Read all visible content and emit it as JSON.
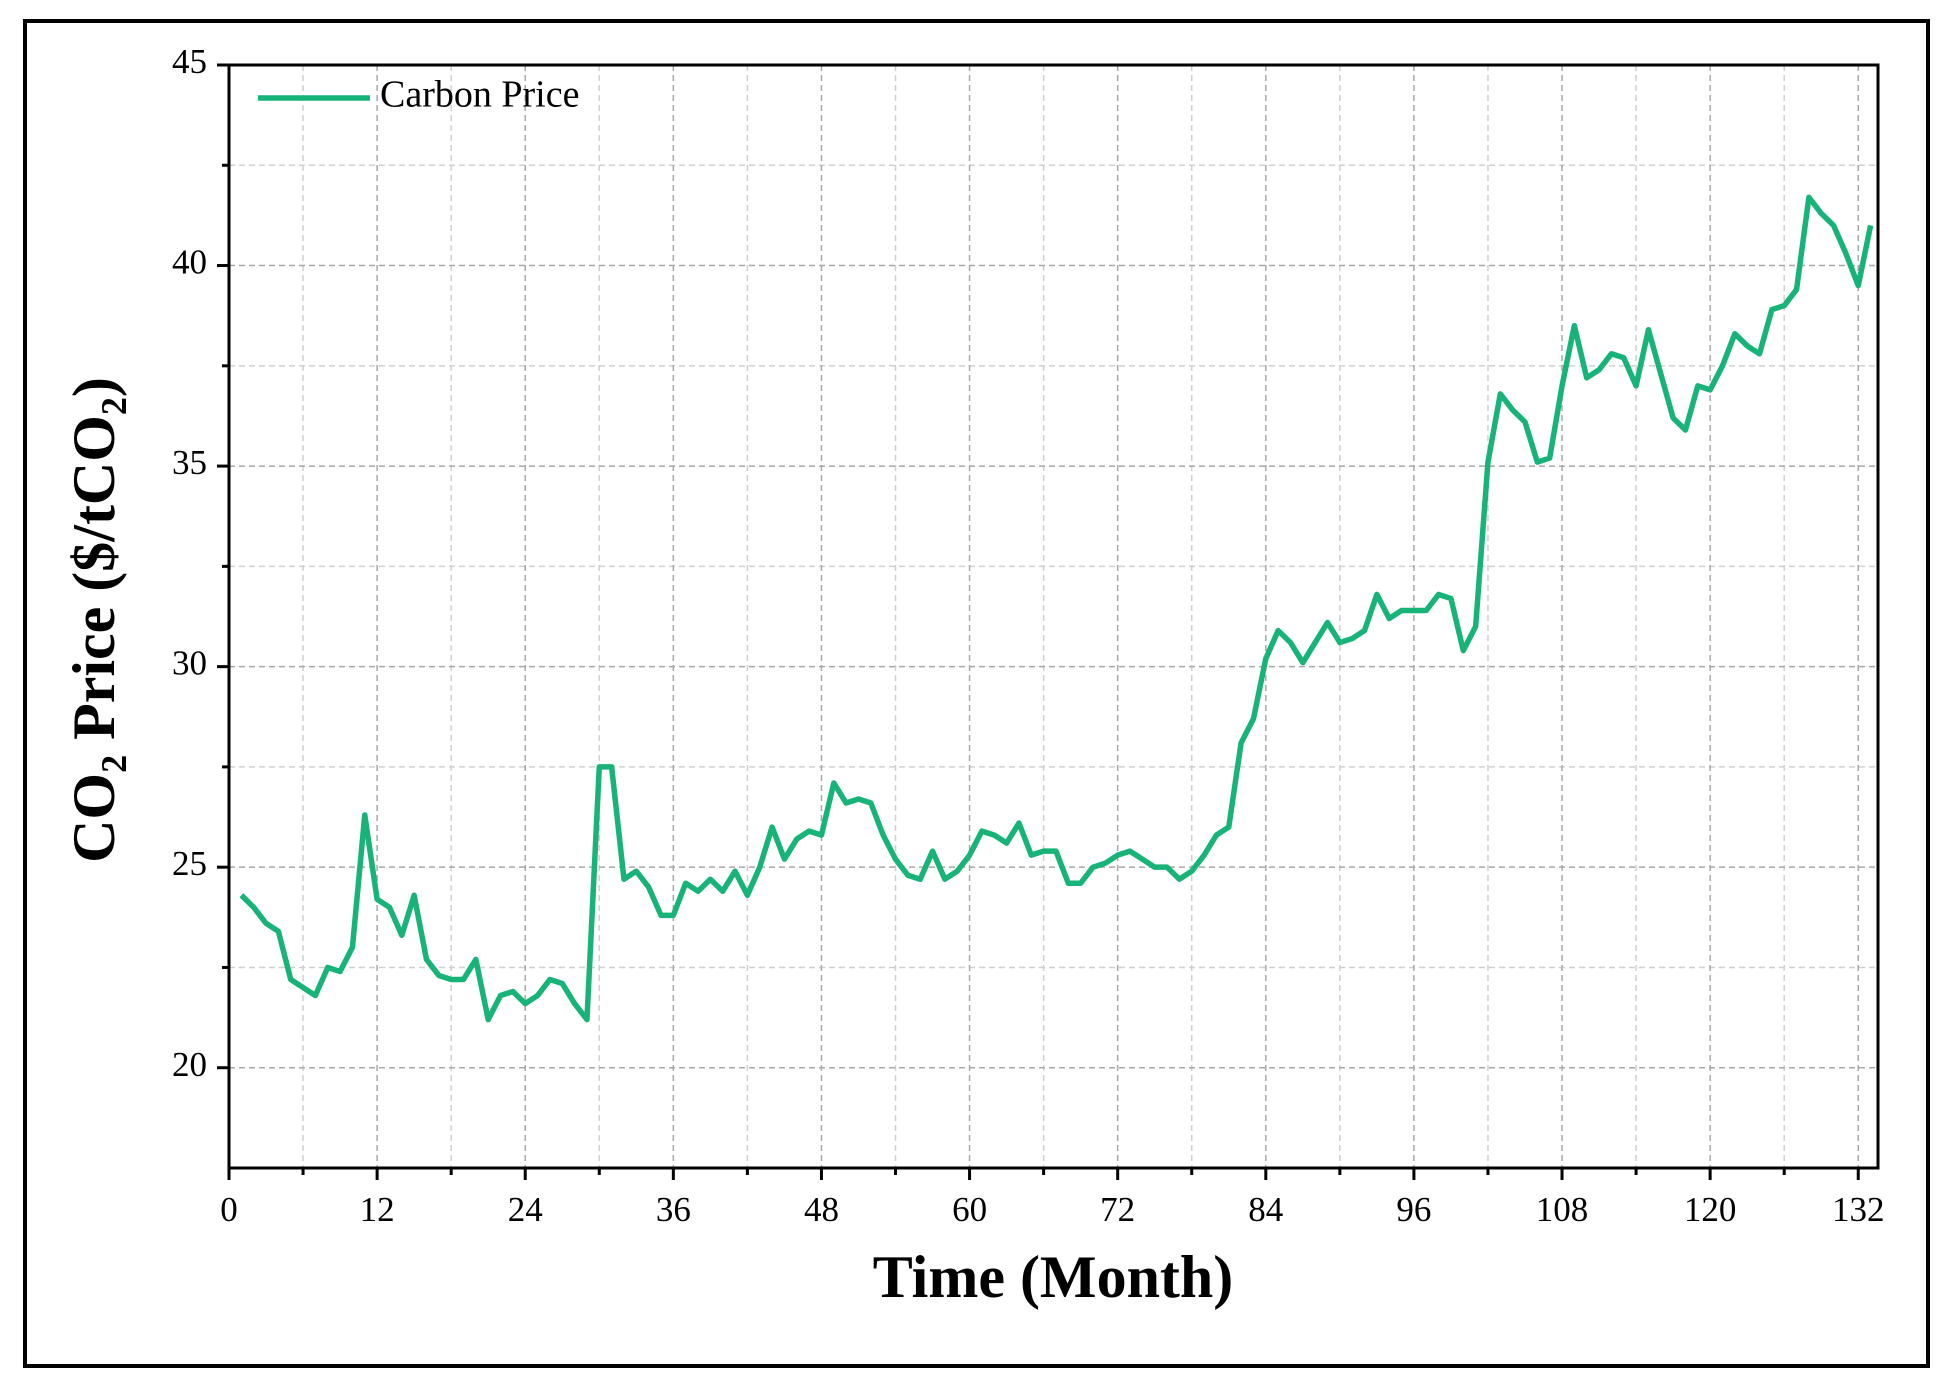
{
  "chart_data": {
    "type": "line",
    "xlabel": "Time (Month)",
    "ylabel": "CO₂ Price ($/tCO₂)",
    "x": [
      1,
      2,
      3,
      4,
      5,
      6,
      7,
      8,
      9,
      10,
      11,
      12,
      13,
      14,
      15,
      16,
      17,
      18,
      19,
      20,
      21,
      22,
      23,
      24,
      25,
      26,
      27,
      28,
      29,
      30,
      31,
      32,
      33,
      34,
      35,
      36,
      37,
      38,
      39,
      40,
      41,
      42,
      43,
      44,
      45,
      46,
      47,
      48,
      49,
      50,
      51,
      52,
      53,
      54,
      55,
      56,
      57,
      58,
      59,
      60,
      61,
      62,
      63,
      64,
      65,
      66,
      67,
      68,
      69,
      70,
      71,
      72,
      73,
      74,
      75,
      76,
      77,
      78,
      79,
      80,
      81,
      82,
      83,
      84,
      85,
      86,
      87,
      88,
      89,
      90,
      91,
      92,
      93,
      94,
      95,
      96,
      97,
      98,
      99,
      100,
      101,
      102,
      103,
      104,
      105,
      106,
      107,
      108,
      109,
      110,
      111,
      112,
      113,
      114,
      115,
      116,
      117,
      118,
      119,
      120,
      121,
      122,
      123,
      124,
      125,
      126,
      127,
      128,
      129,
      130,
      131,
      132,
      133
    ],
    "series": [
      {
        "name": "Carbon Price",
        "color": "#17b378",
        "values": [
          24.3,
          24.0,
          23.6,
          23.4,
          22.2,
          22.0,
          21.8,
          22.5,
          22.4,
          23.0,
          26.3,
          24.2,
          24.0,
          23.3,
          24.3,
          22.7,
          22.3,
          22.2,
          22.2,
          22.7,
          21.2,
          21.8,
          21.9,
          21.6,
          21.8,
          22.2,
          22.1,
          21.6,
          21.2,
          27.5,
          27.5,
          24.7,
          24.9,
          24.5,
          23.8,
          23.8,
          24.6,
          24.4,
          24.7,
          24.4,
          24.9,
          24.3,
          25.0,
          26.0,
          25.2,
          25.7,
          25.9,
          25.8,
          27.1,
          26.6,
          26.7,
          26.6,
          25.8,
          25.2,
          24.8,
          24.7,
          25.4,
          24.7,
          24.9,
          25.3,
          25.9,
          25.8,
          25.6,
          26.1,
          25.3,
          25.4,
          25.4,
          24.6,
          24.6,
          25.0,
          25.1,
          25.3,
          25.4,
          25.2,
          25.0,
          25.0,
          24.7,
          24.9,
          25.3,
          25.8,
          26.0,
          28.1,
          28.7,
          30.2,
          30.9,
          30.6,
          30.1,
          30.6,
          31.1,
          30.6,
          30.7,
          30.9,
          31.8,
          31.2,
          31.4,
          31.4,
          31.4,
          31.8,
          31.7,
          30.4,
          31.0,
          35.1,
          36.8,
          36.4,
          36.1,
          35.1,
          35.2,
          37.0,
          38.5,
          37.2,
          37.4,
          37.8,
          37.7,
          37.0,
          38.4,
          37.3,
          36.2,
          35.9,
          37.0,
          36.9,
          37.5,
          38.3,
          38.0,
          37.8,
          38.9,
          39.0,
          39.4,
          41.7,
          41.3,
          41.0,
          40.3,
          39.5,
          41.0
        ]
      }
    ],
    "xlim": [
      0,
      133.6
    ],
    "ylim": [
      17.5,
      45
    ],
    "xticks": [
      0,
      12,
      24,
      36,
      48,
      60,
      72,
      84,
      96,
      108,
      120,
      132
    ],
    "xminorticks": [
      6,
      18,
      30,
      42,
      54,
      66,
      78,
      90,
      102,
      114,
      126
    ],
    "yticks": [
      20,
      25,
      30,
      35,
      40,
      45
    ],
    "yminorticks": [
      22.5,
      27.5,
      32.5,
      37.5,
      42.5
    ],
    "grid": true,
    "legend": "upper left"
  }
}
